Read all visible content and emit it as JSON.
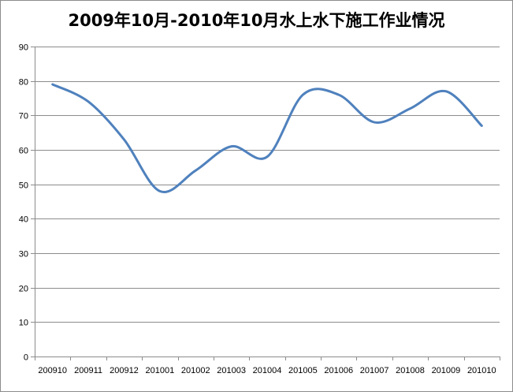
{
  "chart_data": {
    "type": "line",
    "title": "2009年10月-2010年10月水上水下施工作业情况",
    "xlabel": "",
    "ylabel": "",
    "categories": [
      "200910",
      "200911",
      "200912",
      "201001",
      "201002",
      "201003",
      "201004",
      "201005",
      "201006",
      "201007",
      "201008",
      "201009",
      "201010"
    ],
    "series": [
      {
        "values": [
          79,
          74,
          63,
          48,
          54,
          61,
          58,
          76,
          76,
          68,
          72,
          77,
          67
        ],
        "color": "#4f81bd"
      }
    ],
    "ylim": [
      0,
      90
    ],
    "yticks": [
      0,
      10,
      20,
      30,
      40,
      50,
      60,
      70,
      80,
      90
    ],
    "grid": true,
    "smooth": true,
    "legend": "none"
  }
}
